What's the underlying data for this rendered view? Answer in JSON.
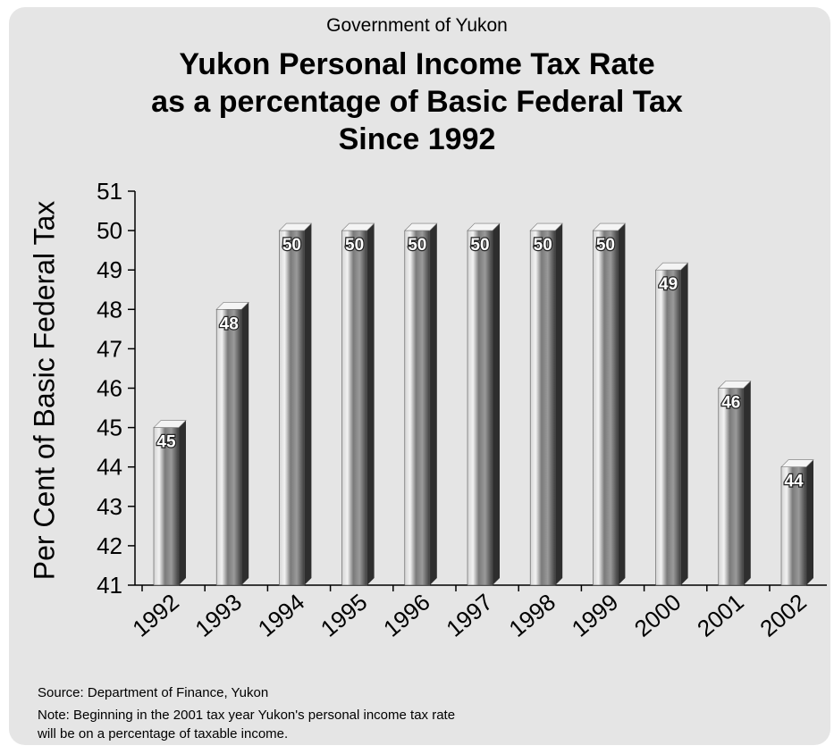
{
  "header": {
    "subtitle": "Government of Yukon",
    "title_lines": [
      "Yukon Personal Income Tax Rate",
      "as a percentage of Basic Federal Tax",
      "Since 1992"
    ]
  },
  "footer": {
    "source": "Source:  Department of Finance, Yukon",
    "note_lines": [
      "Note:  Beginning in the 2001 tax year Yukon's personal income tax rate",
      "will be on a percentage of taxable income."
    ]
  },
  "chart_data": {
    "type": "bar",
    "title": "Yukon Personal Income Tax Rate as a percentage of Basic Federal Tax Since 1992",
    "xlabel": "",
    "ylabel": "Per Cent of Basic Federal Tax",
    "categories": [
      "1992",
      "1993",
      "1994",
      "1995",
      "1996",
      "1997",
      "1998",
      "1999",
      "2000",
      "2001",
      "2002"
    ],
    "values": [
      45,
      48,
      50,
      50,
      50,
      50,
      50,
      50,
      49,
      46,
      44
    ],
    "data_labels": [
      "45",
      "48",
      "50",
      "50",
      "50",
      "50",
      "50",
      "50",
      "49",
      "46",
      "44"
    ],
    "ylim": [
      41,
      51
    ],
    "yticks": [
      "41",
      "42",
      "43",
      "44",
      "45",
      "46",
      "47",
      "48",
      "49",
      "50",
      "51"
    ],
    "grid": false,
    "legend": "none",
    "bar_color": "#7a7a7a"
  }
}
